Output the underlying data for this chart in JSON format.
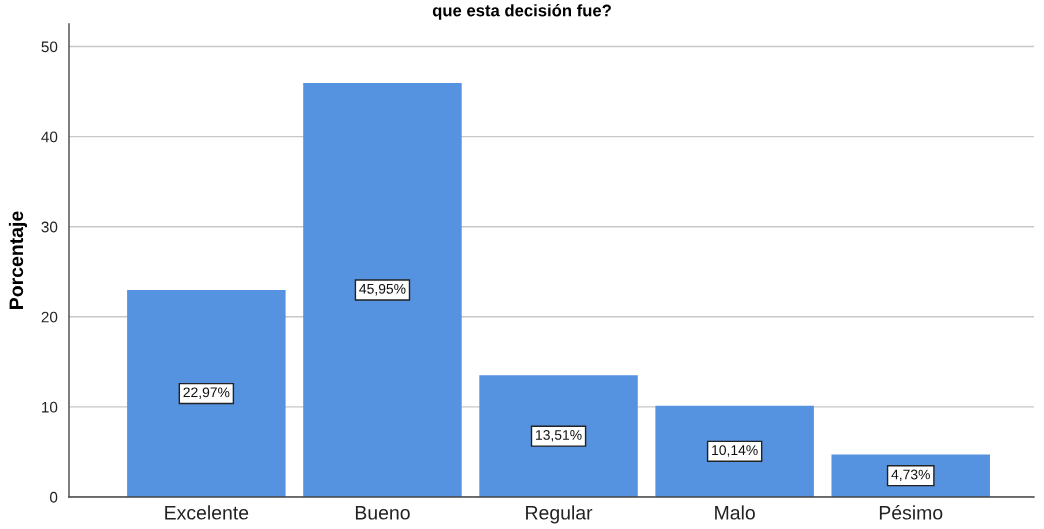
{
  "chart_data": {
    "type": "bar",
    "title": "que esta decisión fue?",
    "ylabel": "Porcentaje",
    "categories": [
      "Excelente",
      "Bueno",
      "Regular",
      "Malo",
      "Pésimo"
    ],
    "values": [
      22.97,
      45.95,
      13.51,
      10.14,
      4.73
    ],
    "value_labels": [
      "22,97%",
      "45,95%",
      "13,51%",
      "10,14%",
      "4,73%"
    ],
    "color": "#5592e0",
    "ylim": [
      0,
      52.5
    ],
    "yticks": [
      0,
      10,
      20,
      30,
      40,
      50
    ],
    "grid": "y"
  }
}
